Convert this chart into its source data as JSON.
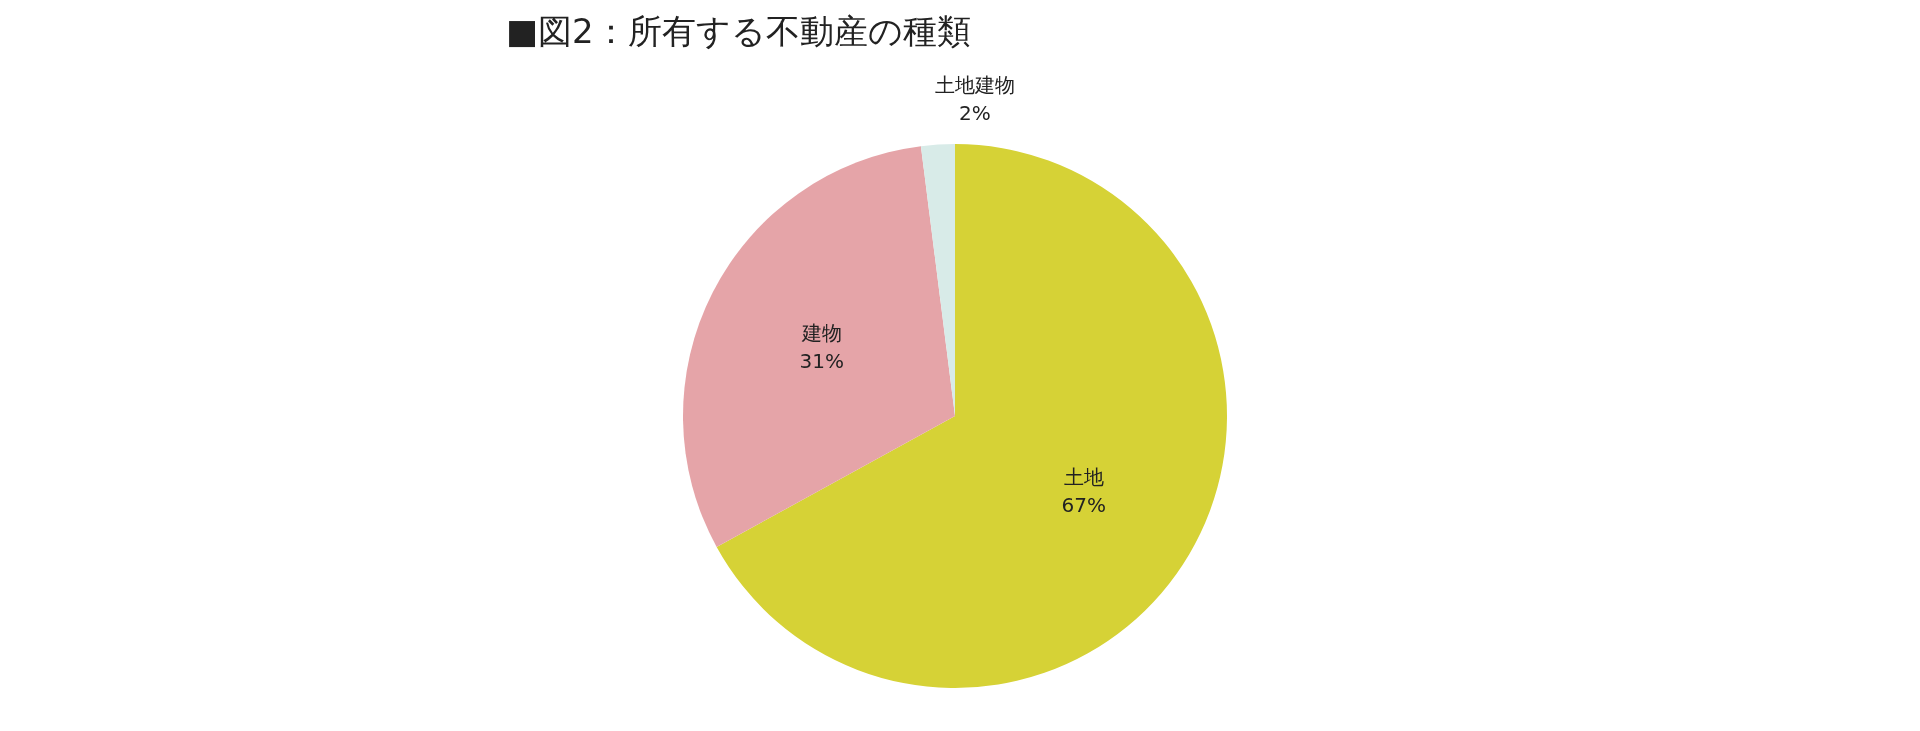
{
  "chart_data": {
    "type": "pie",
    "title": "■図2：所有する不動産の種類",
    "categories": [
      "土地",
      "建物",
      "土地建物"
    ],
    "values": [
      67,
      31,
      2
    ],
    "colors": [
      "#d6d236",
      "#e5a4a8",
      "#d8ebe8"
    ],
    "value_labels": [
      "67%",
      "31%",
      "2%"
    ]
  }
}
